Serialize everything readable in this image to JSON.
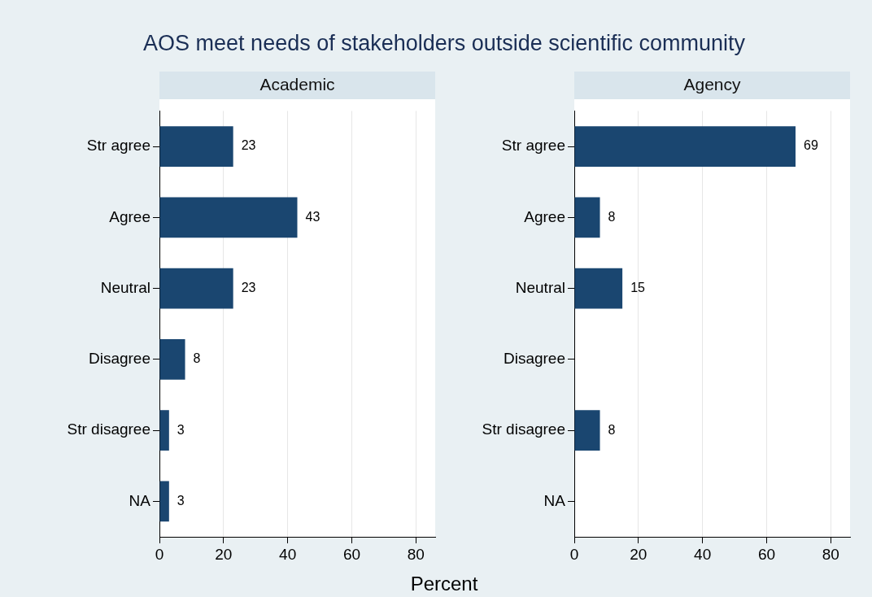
{
  "chart_data": [
    {
      "type": "bar",
      "orientation": "horizontal",
      "title": "AOS meet needs of stakeholders outside scientific community",
      "subtitle": "Academic",
      "xlabel": "Percent",
      "categories": [
        "Str agree",
        "Agree",
        "Neutral",
        "Disagree",
        "Str disagree",
        "NA"
      ],
      "values": [
        23,
        43,
        23,
        8,
        3,
        3
      ],
      "color": "#1a4670",
      "xlim": [
        0,
        86
      ],
      "xticks": [
        0,
        20,
        40,
        60,
        80
      ],
      "grid": "x",
      "data_labels": true,
      "legend": false
    },
    {
      "type": "bar",
      "orientation": "horizontal",
      "subtitle": "Agency",
      "categories": [
        "Str agree",
        "Agree",
        "Neutral",
        "Disagree",
        "Str disagree",
        "NA"
      ],
      "values": [
        69,
        8,
        15,
        null,
        8,
        null
      ],
      "color": "#1a4670",
      "xlim": [
        0,
        86
      ],
      "xticks": [
        0,
        20,
        40,
        60,
        80
      ],
      "grid": "x",
      "data_labels": true,
      "legend": false
    }
  ]
}
